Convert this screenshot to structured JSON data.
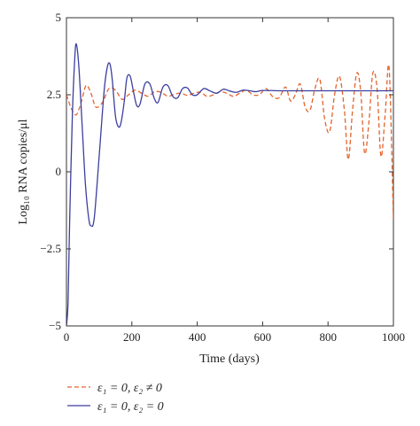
{
  "chart_data": {
    "type": "line",
    "xlabel": "Time (days)",
    "ylabel": "Log₁₀ RNA copies/μl",
    "xlim": [
      0,
      1000
    ],
    "ylim": [
      -5,
      5
    ],
    "x_ticks": [
      0,
      200,
      400,
      600,
      800,
      1000
    ],
    "x_tick_labels": [
      "0",
      "200",
      "400",
      "600",
      "800",
      "1000"
    ],
    "y_ticks": [
      -5,
      -2.5,
      0,
      2.5,
      5
    ],
    "y_tick_labels": [
      "−5",
      "−2.5",
      "0",
      "2.5",
      "5"
    ],
    "grid": false,
    "legend_position": "bottom-left, below plot",
    "series": [
      {
        "name": "ε₁ = 0, ε₂ ≠ 0",
        "color": "#e4632c",
        "style": "dashed",
        "x": [
          0,
          15,
          30,
          45,
          60,
          75,
          90,
          110,
          130,
          150,
          170,
          190,
          210,
          230,
          250,
          270,
          290,
          310,
          330,
          350,
          370,
          390,
          410,
          430,
          450,
          470,
          490,
          510,
          530,
          550,
          570,
          590,
          610,
          630,
          650,
          670,
          685,
          700,
          715,
          730,
          745,
          760,
          775,
          790,
          805,
          820,
          835,
          850,
          862,
          875,
          888,
          900,
          912,
          925,
          937,
          950,
          962,
          975,
          987,
          1000
        ],
        "values": [
          2.5,
          2.05,
          1.85,
          2.25,
          2.8,
          2.55,
          2.1,
          2.25,
          2.7,
          2.65,
          2.35,
          2.5,
          2.65,
          2.55,
          2.45,
          2.6,
          2.58,
          2.45,
          2.52,
          2.55,
          2.48,
          2.55,
          2.58,
          2.45,
          2.5,
          2.6,
          2.55,
          2.45,
          2.55,
          2.65,
          2.5,
          2.5,
          2.7,
          2.45,
          2.4,
          2.75,
          2.3,
          2.5,
          2.85,
          2.1,
          2.0,
          2.7,
          3.0,
          1.7,
          1.3,
          2.5,
          3.1,
          2.0,
          0.4,
          2.0,
          3.2,
          2.6,
          0.6,
          1.6,
          3.2,
          2.7,
          0.5,
          1.9,
          3.35,
          -1.6
        ]
      },
      {
        "name": "ε₁ = 0, ε₂ = 0",
        "color": "#3b3f9e",
        "style": "solid",
        "x": [
          0,
          5,
          10,
          18,
          25,
          30,
          38,
          48,
          58,
          68,
          75,
          85,
          100,
          115,
          125,
          133,
          140,
          150,
          160,
          168,
          177,
          185,
          195,
          205,
          215,
          225,
          240,
          255,
          268,
          280,
          295,
          310,
          325,
          340,
          355,
          370,
          385,
          400,
          420,
          440,
          460,
          480,
          500,
          520,
          540,
          560,
          580,
          600,
          650,
          700,
          800,
          900,
          1000
        ],
        "values": [
          -5.0,
          -4.2,
          -1.5,
          1.8,
          3.6,
          4.15,
          3.4,
          1.5,
          -0.4,
          -1.5,
          -1.75,
          -1.5,
          0.5,
          2.6,
          3.4,
          3.5,
          3.0,
          1.8,
          1.45,
          1.65,
          2.3,
          3.05,
          3.1,
          2.6,
          2.15,
          2.2,
          2.85,
          2.85,
          2.4,
          2.25,
          2.75,
          2.8,
          2.45,
          2.4,
          2.7,
          2.72,
          2.5,
          2.5,
          2.7,
          2.62,
          2.55,
          2.68,
          2.62,
          2.58,
          2.65,
          2.63,
          2.6,
          2.64,
          2.63,
          2.63,
          2.63,
          2.63,
          2.63
        ]
      }
    ]
  },
  "legend": [
    {
      "label": "ε₁ = 0, ε₂ ≠ 0"
    },
    {
      "label": "ε₁ = 0, ε₂ = 0"
    }
  ]
}
